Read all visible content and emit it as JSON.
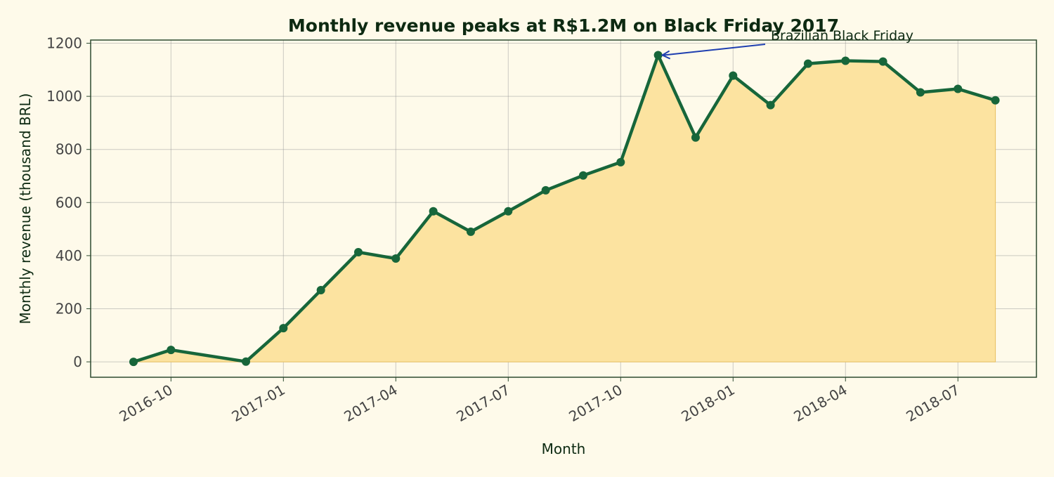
{
  "chart_data": {
    "type": "area",
    "title": "Monthly revenue peaks at R$1.2M on Black Friday 2017",
    "xlabel": "Month",
    "ylabel": "Monthly revenue (thousand BRL)",
    "ylim": [
      -58,
      1212
    ],
    "yticks": [
      0,
      200,
      400,
      600,
      800,
      1000,
      1200
    ],
    "xticks": [
      "2016-10",
      "2017-01",
      "2017-04",
      "2017-07",
      "2017-10",
      "2018-01",
      "2018-04",
      "2018-07"
    ],
    "grid": true,
    "x": [
      "2016-09",
      "2016-10",
      "2016-12",
      "2017-01",
      "2017-02",
      "2017-03",
      "2017-04",
      "2017-05",
      "2017-06",
      "2017-07",
      "2017-08",
      "2017-09",
      "2017-10",
      "2017-11",
      "2017-12",
      "2018-01",
      "2018-02",
      "2018-03",
      "2018-04",
      "2018-05",
      "2018-06",
      "2018-07",
      "2018-08"
    ],
    "values": [
      0,
      45,
      1,
      127,
      270,
      413,
      389,
      567,
      490,
      567,
      646,
      702,
      752,
      1155,
      845,
      1078,
      967,
      1123,
      1134,
      1131,
      1015,
      1028,
      985
    ],
    "annotation": {
      "text": "Brazilian Black Friday",
      "x": "2017-11",
      "y": 1155
    },
    "colors": {
      "line": "#17663a",
      "fill": "#fce3a0",
      "arrow": "#1f3fb0",
      "text": "#0d2a12"
    }
  }
}
